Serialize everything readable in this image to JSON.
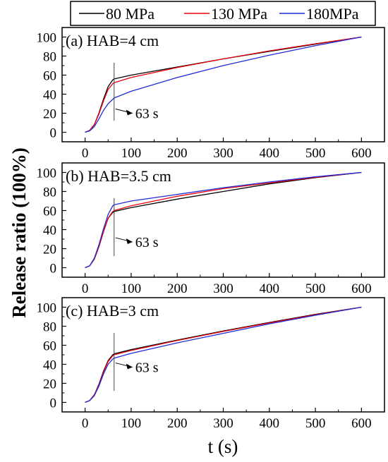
{
  "chart_data": [
    {
      "type": "line",
      "panel_label": "(a) HAB=4 cm",
      "annotation": "63 s",
      "marker_x": 63,
      "xlim": [
        -50,
        650
      ],
      "ylim": [
        -10,
        110
      ],
      "yticks": [
        0,
        20,
        40,
        60,
        80,
        100
      ],
      "series": [
        {
          "name": "80 MPa",
          "color": "#000000",
          "x": [
            0,
            10,
            20,
            30,
            40,
            50,
            60,
            63,
            100,
            200,
            300,
            400,
            500,
            600
          ],
          "y": [
            0,
            2,
            8,
            20,
            35,
            48,
            55,
            56,
            60,
            68.5,
            77,
            85,
            92.5,
            100
          ]
        },
        {
          "name": "130 MPa",
          "color": "#e8000b",
          "x": [
            0,
            10,
            20,
            30,
            40,
            50,
            60,
            63,
            100,
            200,
            300,
            400,
            500,
            600
          ],
          "y": [
            0,
            2,
            8,
            19,
            33,
            45,
            51,
            52,
            57.5,
            68,
            77,
            85.5,
            93,
            100
          ]
        },
        {
          "name": "180MPa",
          "color": "#1f2bd8",
          "x": [
            0,
            10,
            20,
            30,
            40,
            50,
            60,
            63,
            100,
            200,
            300,
            400,
            500,
            600
          ],
          "y": [
            0,
            1.5,
            6,
            14,
            23,
            30,
            34.5,
            36,
            43,
            57.5,
            70,
            81,
            91,
            100
          ]
        }
      ]
    },
    {
      "type": "line",
      "panel_label": "(b) HAB=3.5 cm",
      "annotation": "63 s",
      "marker_x": 63,
      "xlim": [
        -50,
        650
      ],
      "ylim": [
        -10,
        110
      ],
      "yticks": [
        0,
        20,
        40,
        60,
        80,
        100
      ],
      "series": [
        {
          "name": "80 MPa",
          "color": "#000000",
          "x": [
            0,
            10,
            20,
            30,
            40,
            50,
            60,
            63,
            100,
            200,
            300,
            400,
            500,
            600
          ],
          "y": [
            0,
            2,
            9,
            22,
            38,
            52,
            58,
            59,
            63,
            72,
            80,
            88,
            94.5,
            100
          ]
        },
        {
          "name": "130 MPa",
          "color": "#e8000b",
          "x": [
            0,
            10,
            20,
            30,
            40,
            50,
            60,
            63,
            100,
            200,
            300,
            400,
            500,
            600
          ],
          "y": [
            0,
            2,
            9,
            22,
            38,
            52,
            59,
            60,
            65,
            75,
            83,
            89,
            95,
            100
          ]
        },
        {
          "name": "180MPa",
          "color": "#1f2bd8",
          "x": [
            0,
            10,
            20,
            30,
            40,
            50,
            60,
            63,
            100,
            200,
            300,
            400,
            500,
            600
          ],
          "y": [
            0,
            2,
            10,
            24,
            41,
            56,
            65,
            66,
            70,
            77,
            84,
            90,
            95.5,
            100
          ]
        }
      ]
    },
    {
      "type": "line",
      "panel_label": "(c) HAB=3 cm",
      "annotation": "63 s",
      "marker_x": 63,
      "xlim": [
        -50,
        650
      ],
      "ylim": [
        -10,
        110
      ],
      "yticks": [
        0,
        20,
        40,
        60,
        80,
        100
      ],
      "series": [
        {
          "name": "80 MPa",
          "color": "#000000",
          "x": [
            0,
            10,
            20,
            30,
            40,
            50,
            60,
            63,
            100,
            200,
            300,
            400,
            500,
            600
          ],
          "y": [
            0,
            2,
            8,
            19,
            33,
            44,
            50,
            51,
            55.5,
            65.5,
            75,
            84,
            92.5,
            100
          ]
        },
        {
          "name": "130 MPa",
          "color": "#e8000b",
          "x": [
            0,
            10,
            20,
            30,
            40,
            50,
            60,
            63,
            100,
            200,
            300,
            400,
            500,
            600
          ],
          "y": [
            0,
            2,
            8,
            18,
            32,
            43,
            49,
            50,
            54.5,
            65,
            74.5,
            83.5,
            92,
            100
          ]
        },
        {
          "name": "180MPa",
          "color": "#1f2bd8",
          "x": [
            0,
            10,
            20,
            30,
            40,
            50,
            60,
            63,
            100,
            200,
            300,
            400,
            500,
            600
          ],
          "y": [
            0,
            2,
            7,
            17,
            30,
            40,
            45.5,
            46.5,
            51.5,
            62.5,
            72.5,
            82.5,
            91.5,
            100
          ]
        }
      ]
    }
  ],
  "legend": {
    "placement": "top",
    "items": [
      {
        "label": "80 MPa",
        "color": "#000000"
      },
      {
        "label": "130 MPa",
        "color": "#e8000b"
      },
      {
        "label": "180MPa",
        "color": "#1f2bd8"
      }
    ]
  },
  "axes": {
    "ylabel": "Release ratio (100%)",
    "xlabel": "t (s)",
    "xticks": [
      0,
      100,
      200,
      300,
      400,
      500,
      600
    ]
  }
}
